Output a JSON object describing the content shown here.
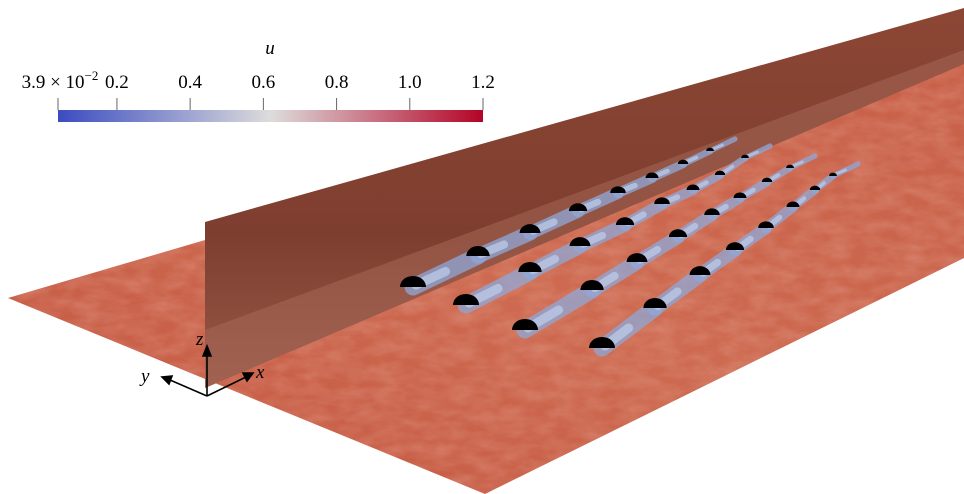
{
  "colorbar": {
    "label": "u",
    "range": [
      0.039,
      1.2
    ],
    "ticks": [
      {
        "value": 0.039,
        "label": "3.9 × 10",
        "superscript": "−2"
      },
      0.2,
      0.4,
      0.6,
      0.8,
      {
        "value": 1,
        "label": "1.0"
      },
      1.2
    ],
    "colormap": [
      "#3b4cc0",
      "#dddcdc",
      "#b40426"
    ]
  },
  "axes": {
    "z": "z",
    "y": "y",
    "x": "x"
  }
}
